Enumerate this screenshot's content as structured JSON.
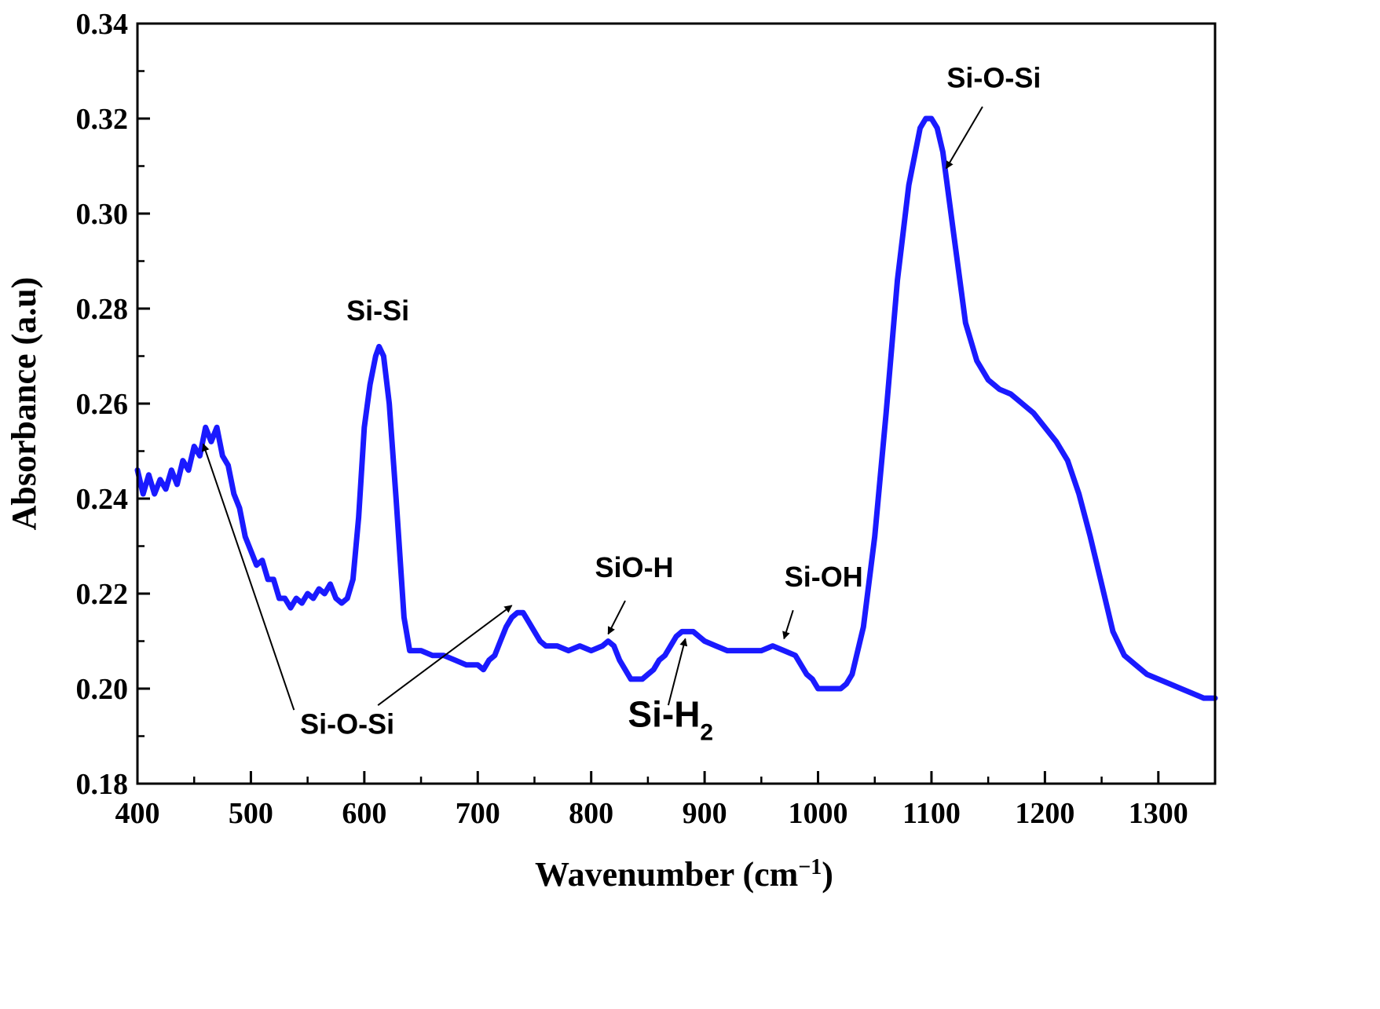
{
  "chart_data": {
    "type": "line",
    "xlabel": "Wavenumber (cm",
    "xlabel_sup": "−1",
    "xlabel_end": ")",
    "ylabel": "Absorbance (a.u)",
    "xlim": [
      400,
      1350
    ],
    "ylim": [
      0.18,
      0.34
    ],
    "x_ticks": [
      400,
      500,
      600,
      700,
      800,
      900,
      1000,
      1100,
      1200,
      1300
    ],
    "y_ticks": [
      "0.18",
      "0.20",
      "0.22",
      "0.24",
      "0.26",
      "0.28",
      "0.30",
      "0.32",
      "0.34"
    ],
    "series": [
      {
        "color": "#1a1aff",
        "x": [
          400,
          405,
          410,
          415,
          420,
          425,
          430,
          435,
          440,
          445,
          450,
          455,
          460,
          465,
          470,
          475,
          480,
          485,
          490,
          495,
          500,
          505,
          510,
          515,
          520,
          525,
          530,
          535,
          540,
          545,
          550,
          555,
          560,
          565,
          570,
          575,
          580,
          585,
          590,
          595,
          600,
          605,
          610,
          613,
          617,
          622,
          628,
          635,
          640,
          650,
          660,
          670,
          680,
          690,
          700,
          705,
          710,
          715,
          720,
          725,
          730,
          735,
          740,
          745,
          750,
          755,
          760,
          770,
          780,
          790,
          800,
          810,
          815,
          820,
          825,
          830,
          835,
          840,
          845,
          850,
          855,
          860,
          865,
          870,
          875,
          880,
          885,
          890,
          895,
          900,
          910,
          920,
          930,
          940,
          950,
          960,
          970,
          980,
          985,
          990,
          995,
          1000,
          1005,
          1010,
          1015,
          1020,
          1025,
          1030,
          1040,
          1050,
          1060,
          1070,
          1080,
          1090,
          1095,
          1100,
          1105,
          1110,
          1120,
          1130,
          1140,
          1150,
          1160,
          1170,
          1180,
          1190,
          1200,
          1210,
          1220,
          1230,
          1240,
          1250,
          1260,
          1270,
          1280,
          1290,
          1300,
          1310,
          1320,
          1330,
          1340,
          1350
        ],
        "y": [
          0.246,
          0.241,
          0.245,
          0.241,
          0.244,
          0.242,
          0.246,
          0.243,
          0.248,
          0.246,
          0.251,
          0.249,
          0.255,
          0.252,
          0.255,
          0.249,
          0.247,
          0.241,
          0.238,
          0.232,
          0.229,
          0.226,
          0.227,
          0.223,
          0.223,
          0.219,
          0.219,
          0.217,
          0.219,
          0.218,
          0.22,
          0.219,
          0.221,
          0.22,
          0.222,
          0.219,
          0.218,
          0.219,
          0.223,
          0.236,
          0.255,
          0.264,
          0.27,
          0.272,
          0.27,
          0.26,
          0.24,
          0.215,
          0.208,
          0.208,
          0.207,
          0.207,
          0.206,
          0.205,
          0.205,
          0.204,
          0.206,
          0.207,
          0.21,
          0.213,
          0.215,
          0.216,
          0.216,
          0.214,
          0.212,
          0.21,
          0.209,
          0.209,
          0.208,
          0.209,
          0.208,
          0.209,
          0.21,
          0.209,
          0.206,
          0.204,
          0.202,
          0.202,
          0.202,
          0.203,
          0.204,
          0.206,
          0.207,
          0.209,
          0.211,
          0.212,
          0.212,
          0.212,
          0.211,
          0.21,
          0.209,
          0.208,
          0.208,
          0.208,
          0.208,
          0.209,
          0.208,
          0.207,
          0.205,
          0.203,
          0.202,
          0.2,
          0.2,
          0.2,
          0.2,
          0.2,
          0.201,
          0.203,
          0.213,
          0.232,
          0.258,
          0.286,
          0.306,
          0.318,
          0.32,
          0.32,
          0.318,
          0.313,
          0.295,
          0.277,
          0.269,
          0.265,
          0.263,
          0.262,
          0.26,
          0.258,
          0.255,
          0.252,
          0.248,
          0.241,
          0.232,
          0.222,
          0.212,
          0.207,
          0.205,
          0.203,
          0.202,
          0.201,
          0.2,
          0.199,
          0.198,
          0.198
        ]
      }
    ],
    "annotations": [
      {
        "text": "Si-O-Si",
        "x": 1155,
        "y": 0.3265,
        "arrow_from": [
          1145,
          0.3225
        ],
        "arrow_to": [
          1113,
          0.3095
        ]
      },
      {
        "text": "Si-Si",
        "x": 612,
        "y": 0.2775
      },
      {
        "text": "SiO-H",
        "x": 838,
        "y": 0.2235,
        "arrow_from": [
          830,
          0.2185
        ],
        "arrow_to": [
          815,
          0.2115
        ]
      },
      {
        "text": "Si-OH",
        "x": 1005,
        "y": 0.2215,
        "arrow_from": [
          978,
          0.2165
        ],
        "arrow_to": [
          970,
          0.2105
        ]
      },
      {
        "text": "Si-H",
        "sub": "2",
        "x": 870,
        "y": 0.192,
        "arrow_from": [
          868,
          0.1965
        ],
        "arrow_to": [
          883,
          0.2105
        ]
      },
      {
        "text": "Si-O-Si",
        "x": 585,
        "y": 0.1905,
        "arrows": [
          {
            "from": [
              538,
              0.1955
            ],
            "to": [
              458,
              0.2515
            ]
          },
          {
            "from": [
              612,
              0.1965
            ],
            "to": [
              730,
              0.2175
            ]
          }
        ]
      }
    ]
  }
}
